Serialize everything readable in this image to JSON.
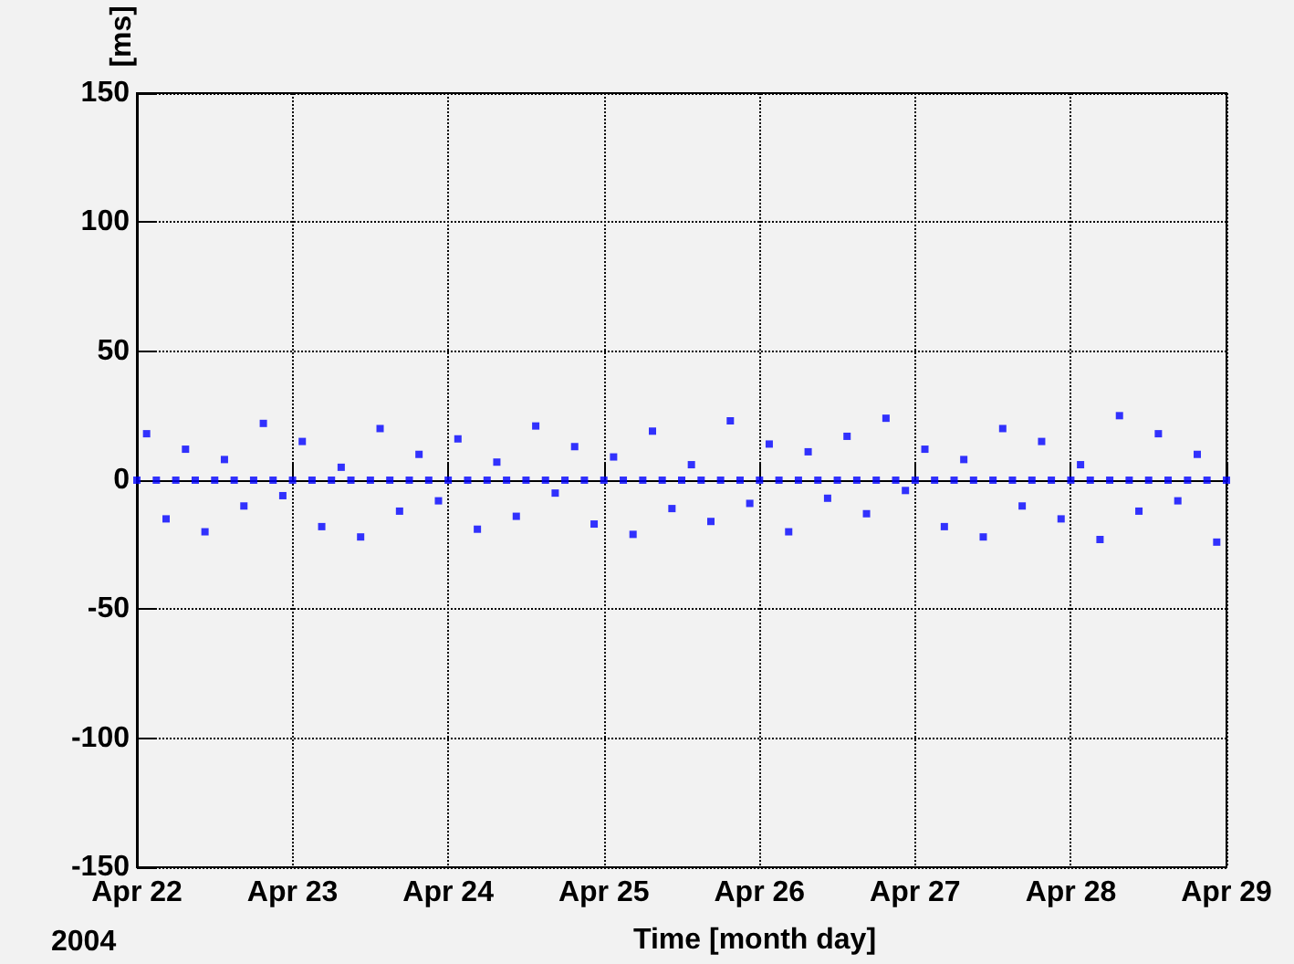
{
  "chart_data": {
    "type": "scatter",
    "xlabel": "Time [month day]",
    "ylabel": "[ms]",
    "annotations": [
      "2004"
    ],
    "xlim": [
      "2004-04-22",
      "2004-04-29"
    ],
    "xticks": [
      {
        "value": "2004-04-22",
        "label": "Apr 22"
      },
      {
        "value": "2004-04-23",
        "label": "Apr 23"
      },
      {
        "value": "2004-04-24",
        "label": "Apr 24"
      },
      {
        "value": "2004-04-25",
        "label": "Apr 25"
      },
      {
        "value": "2004-04-26",
        "label": "Apr 26"
      },
      {
        "value": "2004-04-27",
        "label": "Apr 27"
      },
      {
        "value": "2004-04-28",
        "label": "Apr 28"
      },
      {
        "value": "2004-04-29",
        "label": "Apr 29"
      }
    ],
    "ylim": [
      -150,
      150
    ],
    "yticks": [
      -150,
      -100,
      -50,
      0,
      50,
      100,
      150
    ],
    "grid": true,
    "marker": "square",
    "series": [
      {
        "color": "#0000ff",
        "x": [
          "2004-04-22T00:00",
          "2004-04-22T01:30",
          "2004-04-22T03:00",
          "2004-04-22T04:30",
          "2004-04-22T06:00",
          "2004-04-22T07:30",
          "2004-04-22T09:00",
          "2004-04-22T10:30",
          "2004-04-22T12:00",
          "2004-04-22T13:30",
          "2004-04-22T15:00",
          "2004-04-22T16:30",
          "2004-04-22T18:00",
          "2004-04-22T19:30",
          "2004-04-22T21:00",
          "2004-04-22T22:30",
          "2004-04-23T00:00",
          "2004-04-23T01:30",
          "2004-04-23T03:00",
          "2004-04-23T04:30",
          "2004-04-23T06:00",
          "2004-04-23T07:30",
          "2004-04-23T09:00",
          "2004-04-23T10:30",
          "2004-04-23T12:00",
          "2004-04-23T13:30",
          "2004-04-23T15:00",
          "2004-04-23T16:30",
          "2004-04-23T18:00",
          "2004-04-23T19:30",
          "2004-04-23T21:00",
          "2004-04-23T22:30",
          "2004-04-24T00:00",
          "2004-04-24T01:30",
          "2004-04-24T03:00",
          "2004-04-24T04:30",
          "2004-04-24T06:00",
          "2004-04-24T07:30",
          "2004-04-24T09:00",
          "2004-04-24T10:30",
          "2004-04-24T12:00",
          "2004-04-24T13:30",
          "2004-04-24T15:00",
          "2004-04-24T16:30",
          "2004-04-24T18:00",
          "2004-04-24T19:30",
          "2004-04-24T21:00",
          "2004-04-24T22:30",
          "2004-04-25T00:00",
          "2004-04-25T01:30",
          "2004-04-25T03:00",
          "2004-04-25T04:30",
          "2004-04-25T06:00",
          "2004-04-25T07:30",
          "2004-04-25T09:00",
          "2004-04-25T10:30",
          "2004-04-25T12:00",
          "2004-04-25T13:30",
          "2004-04-25T15:00",
          "2004-04-25T16:30",
          "2004-04-25T18:00",
          "2004-04-25T19:30",
          "2004-04-25T21:00",
          "2004-04-25T22:30",
          "2004-04-26T00:00",
          "2004-04-26T01:30",
          "2004-04-26T03:00",
          "2004-04-26T04:30",
          "2004-04-26T06:00",
          "2004-04-26T07:30",
          "2004-04-26T09:00",
          "2004-04-26T10:30",
          "2004-04-26T12:00",
          "2004-04-26T13:30",
          "2004-04-26T15:00",
          "2004-04-26T16:30",
          "2004-04-26T18:00",
          "2004-04-26T19:30",
          "2004-04-26T21:00",
          "2004-04-26T22:30",
          "2004-04-27T00:00",
          "2004-04-27T01:30",
          "2004-04-27T03:00",
          "2004-04-27T04:30",
          "2004-04-27T06:00",
          "2004-04-27T07:30",
          "2004-04-27T09:00",
          "2004-04-27T10:30",
          "2004-04-27T12:00",
          "2004-04-27T13:30",
          "2004-04-27T15:00",
          "2004-04-27T16:30",
          "2004-04-27T18:00",
          "2004-04-27T19:30",
          "2004-04-27T21:00",
          "2004-04-27T22:30",
          "2004-04-28T00:00",
          "2004-04-28T01:30",
          "2004-04-28T03:00",
          "2004-04-28T04:30",
          "2004-04-28T06:00",
          "2004-04-28T07:30",
          "2004-04-28T09:00",
          "2004-04-28T10:30",
          "2004-04-28T12:00",
          "2004-04-28T13:30",
          "2004-04-28T15:00",
          "2004-04-28T16:30",
          "2004-04-28T18:00",
          "2004-04-28T19:30",
          "2004-04-28T21:00",
          "2004-04-28T22:30",
          "2004-04-29T00:00"
        ],
        "values": [
          0,
          18,
          0,
          -15,
          0,
          12,
          0,
          -20,
          0,
          8,
          0,
          -10,
          0,
          22,
          0,
          -6,
          0,
          15,
          0,
          -18,
          0,
          5,
          0,
          -22,
          0,
          20,
          0,
          -12,
          0,
          10,
          0,
          -8,
          0,
          16,
          0,
          -19,
          0,
          7,
          0,
          -14,
          0,
          21,
          0,
          -5,
          0,
          13,
          0,
          -17,
          0,
          9,
          0,
          -21,
          0,
          19,
          0,
          -11,
          0,
          6,
          0,
          -16,
          0,
          23,
          0,
          -9,
          0,
          14,
          0,
          -20,
          0,
          11,
          0,
          -7,
          0,
          17,
          0,
          -13,
          0,
          24,
          0,
          -4,
          0,
          12,
          0,
          -18,
          0,
          8,
          0,
          -22,
          0,
          20,
          0,
          -10,
          0,
          15,
          0,
          -15,
          0,
          6,
          0,
          -23,
          0,
          25,
          0,
          -12,
          0,
          18,
          0,
          -8,
          0,
          10,
          0,
          -24,
          0
        ]
      }
    ]
  }
}
